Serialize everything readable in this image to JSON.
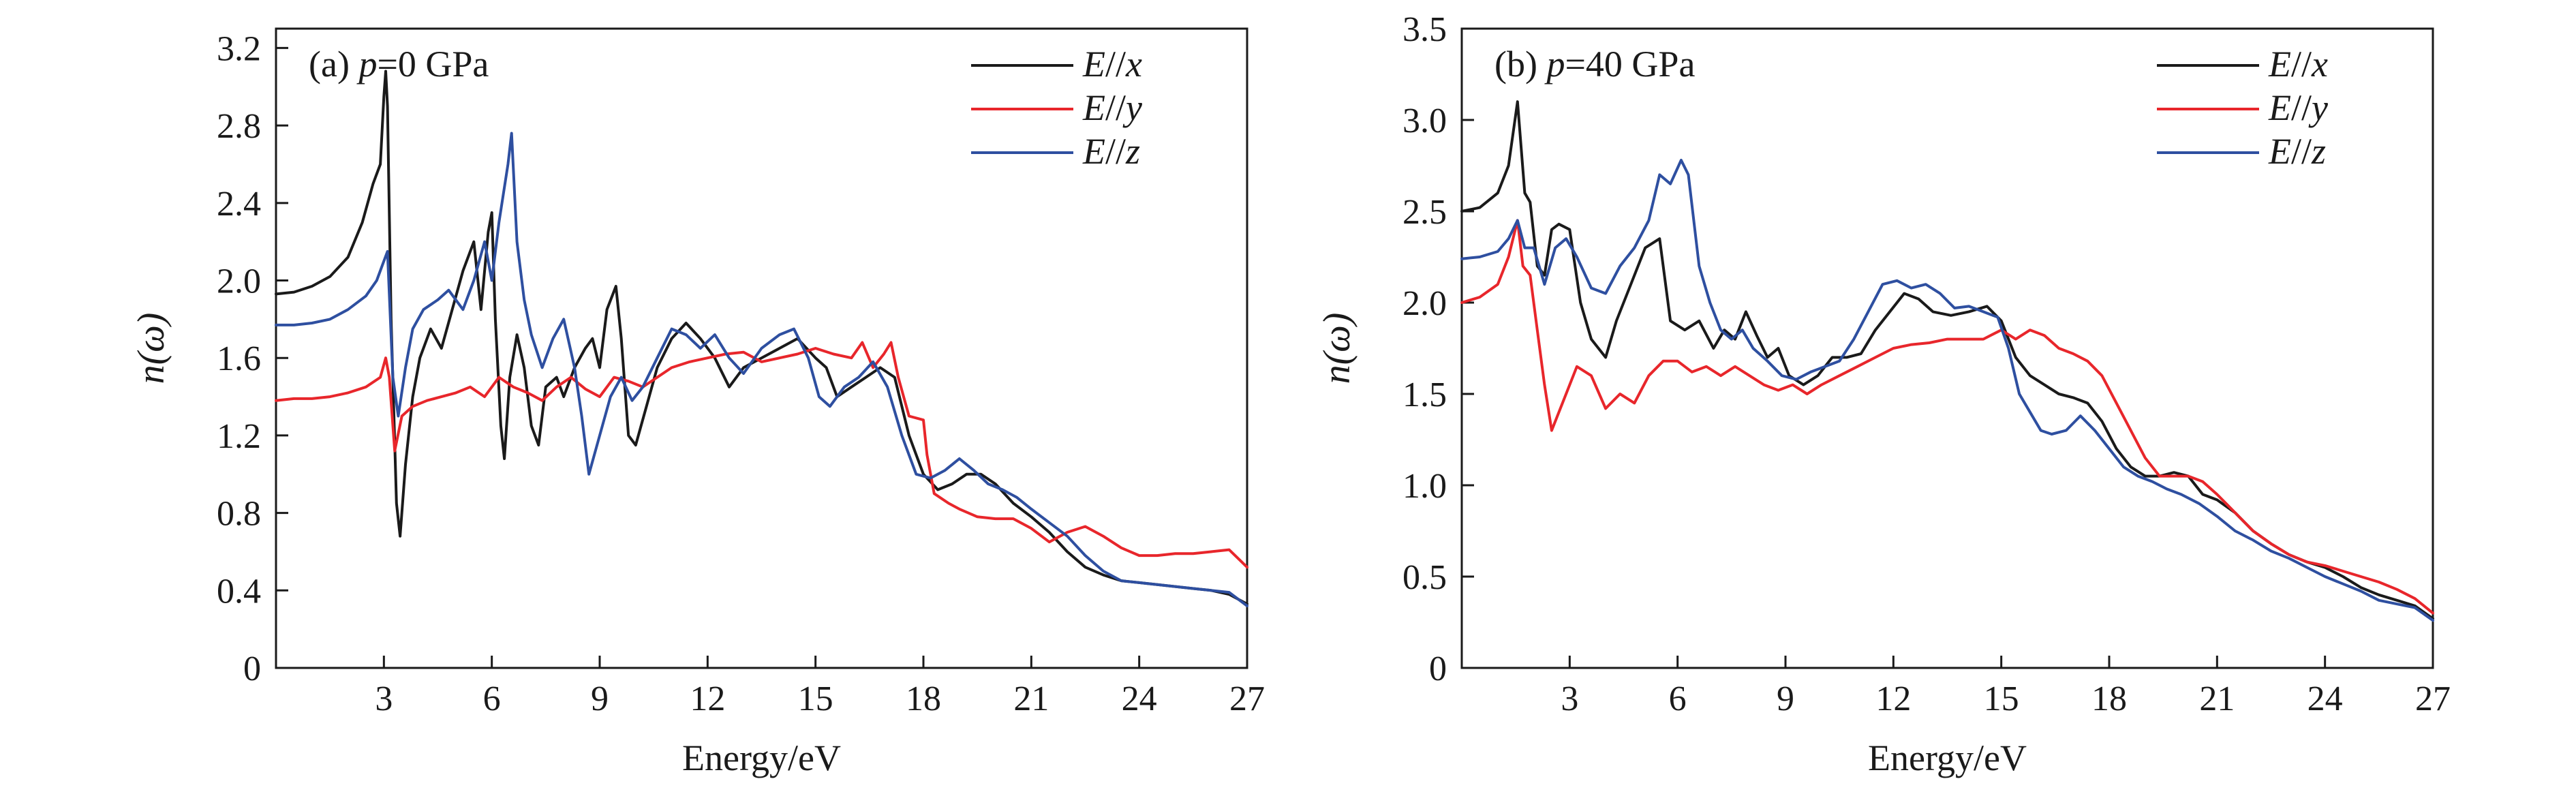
{
  "colors": {
    "x": "#1a1a1a",
    "y": "#e8262b",
    "z": "#2e4fa0",
    "axis": "#1a1a1a"
  },
  "chart_data": [
    {
      "type": "line",
      "panel_label": "(a) ",
      "panel_var": "p",
      "panel_value": "=0 GPa",
      "xlabel": "Energy/eV",
      "ylabel": "n(ω)",
      "xlim": [
        0,
        27
      ],
      "ylim": [
        0,
        3.3
      ],
      "xticks": [
        3,
        6,
        9,
        12,
        15,
        18,
        21,
        24,
        27
      ],
      "yticks": [
        0,
        0.4,
        0.8,
        1.2,
        1.6,
        2.0,
        2.4,
        2.8,
        3.2
      ],
      "ytick_labels": [
        "0",
        "0.4",
        "0.8",
        "1.2",
        "1.6",
        "2.0",
        "2.4",
        "2.8",
        "3.2"
      ],
      "legend": "top-right",
      "series": [
        {
          "name": "E//x",
          "name_prefix": "E",
          "name_sep": "//",
          "name_var": "x",
          "color": "#1a1a1a",
          "x": [
            0,
            0.5,
            1.0,
            1.5,
            2.0,
            2.4,
            2.7,
            2.9,
            3.0,
            3.05,
            3.1,
            3.2,
            3.35,
            3.45,
            3.6,
            3.8,
            4.0,
            4.3,
            4.6,
            4.9,
            5.2,
            5.5,
            5.7,
            5.9,
            6.0,
            6.1,
            6.25,
            6.35,
            6.5,
            6.7,
            6.9,
            7.1,
            7.3,
            7.5,
            7.8,
            8.0,
            8.3,
            8.6,
            8.8,
            9.0,
            9.2,
            9.45,
            9.6,
            9.8,
            10.0,
            10.3,
            10.6,
            11.0,
            11.4,
            11.8,
            12.2,
            12.6,
            13.0,
            13.5,
            14.0,
            14.5,
            15.0,
            15.3,
            15.6,
            16.0,
            16.4,
            16.8,
            17.2,
            17.6,
            18.0,
            18.4,
            18.8,
            19.2,
            19.6,
            20.0,
            20.5,
            21.0,
            21.5,
            22.0,
            22.5,
            23.0,
            23.5,
            24.0,
            24.5,
            25.0,
            25.5,
            26.0,
            26.5,
            27.0
          ],
          "y": [
            1.93,
            1.94,
            1.97,
            2.02,
            2.12,
            2.3,
            2.5,
            2.6,
            2.95,
            3.08,
            2.9,
            1.8,
            0.85,
            0.68,
            1.05,
            1.4,
            1.6,
            1.75,
            1.65,
            1.85,
            2.05,
            2.2,
            1.85,
            2.25,
            2.35,
            1.8,
            1.25,
            1.08,
            1.5,
            1.72,
            1.55,
            1.25,
            1.15,
            1.45,
            1.5,
            1.4,
            1.55,
            1.65,
            1.7,
            1.55,
            1.85,
            1.97,
            1.7,
            1.2,
            1.15,
            1.35,
            1.55,
            1.7,
            1.78,
            1.7,
            1.6,
            1.45,
            1.55,
            1.6,
            1.65,
            1.7,
            1.6,
            1.55,
            1.4,
            1.45,
            1.5,
            1.55,
            1.5,
            1.2,
            1.0,
            0.92,
            0.95,
            1.0,
            1.0,
            0.95,
            0.85,
            0.78,
            0.7,
            0.6,
            0.52,
            0.48,
            0.45,
            0.44,
            0.43,
            0.42,
            0.41,
            0.4,
            0.38,
            0.33
          ]
        },
        {
          "name": "E//y",
          "name_prefix": "E",
          "name_sep": "//",
          "name_var": "y",
          "color": "#e8262b",
          "x": [
            0,
            0.5,
            1.0,
            1.5,
            2.0,
            2.5,
            2.9,
            3.05,
            3.15,
            3.3,
            3.5,
            3.8,
            4.2,
            4.6,
            5.0,
            5.4,
            5.8,
            6.2,
            6.6,
            7.0,
            7.4,
            7.8,
            8.2,
            8.6,
            9.0,
            9.4,
            9.8,
            10.2,
            10.6,
            11.0,
            11.5,
            12.0,
            12.5,
            13.0,
            13.5,
            14.0,
            14.5,
            15.0,
            15.5,
            16.0,
            16.3,
            16.6,
            16.9,
            17.1,
            17.3,
            17.6,
            18.0,
            18.1,
            18.3,
            18.7,
            19.0,
            19.5,
            20.0,
            20.5,
            21.0,
            21.5,
            22.0,
            22.5,
            23.0,
            23.5,
            24.0,
            24.5,
            25.0,
            25.5,
            26.0,
            26.5,
            27.0
          ],
          "y": [
            1.38,
            1.39,
            1.39,
            1.4,
            1.42,
            1.45,
            1.5,
            1.6,
            1.5,
            1.12,
            1.3,
            1.35,
            1.38,
            1.4,
            1.42,
            1.45,
            1.4,
            1.5,
            1.45,
            1.42,
            1.38,
            1.45,
            1.5,
            1.44,
            1.4,
            1.5,
            1.48,
            1.45,
            1.5,
            1.55,
            1.58,
            1.6,
            1.62,
            1.63,
            1.58,
            1.6,
            1.62,
            1.65,
            1.62,
            1.6,
            1.68,
            1.55,
            1.62,
            1.68,
            1.5,
            1.3,
            1.28,
            1.1,
            0.9,
            0.85,
            0.82,
            0.78,
            0.77,
            0.77,
            0.72,
            0.65,
            0.7,
            0.73,
            0.68,
            0.62,
            0.58,
            0.58,
            0.59,
            0.59,
            0.6,
            0.61,
            0.52
          ]
        },
        {
          "name": "E//z",
          "name_prefix": "E",
          "name_sep": "//",
          "name_var": "z",
          "color": "#2e4fa0",
          "x": [
            0,
            0.5,
            1.0,
            1.5,
            2.0,
            2.5,
            2.8,
            3.0,
            3.1,
            3.25,
            3.4,
            3.6,
            3.8,
            4.1,
            4.5,
            4.8,
            5.2,
            5.5,
            5.8,
            6.0,
            6.2,
            6.45,
            6.55,
            6.7,
            6.9,
            7.1,
            7.4,
            7.7,
            8.0,
            8.3,
            8.5,
            8.7,
            9.0,
            9.3,
            9.6,
            9.9,
            10.2,
            10.6,
            11.0,
            11.4,
            11.8,
            12.2,
            12.6,
            13.0,
            13.5,
            14.0,
            14.4,
            14.8,
            15.1,
            15.4,
            15.8,
            16.2,
            16.6,
            17.0,
            17.4,
            17.8,
            18.2,
            18.6,
            19.0,
            19.4,
            19.8,
            20.2,
            20.6,
            21.0,
            21.5,
            22.0,
            22.5,
            23.0,
            23.5,
            24.0,
            24.5,
            25.0,
            25.5,
            26.0,
            26.5,
            27.0
          ],
          "y": [
            1.77,
            1.77,
            1.78,
            1.8,
            1.85,
            1.92,
            2.0,
            2.1,
            2.15,
            1.5,
            1.3,
            1.55,
            1.75,
            1.85,
            1.9,
            1.95,
            1.85,
            2.0,
            2.2,
            2.0,
            2.3,
            2.6,
            2.76,
            2.2,
            1.9,
            1.72,
            1.55,
            1.7,
            1.8,
            1.55,
            1.3,
            1.0,
            1.2,
            1.4,
            1.5,
            1.38,
            1.45,
            1.6,
            1.75,
            1.72,
            1.65,
            1.72,
            1.6,
            1.52,
            1.65,
            1.72,
            1.75,
            1.6,
            1.4,
            1.35,
            1.45,
            1.5,
            1.58,
            1.45,
            1.2,
            1.0,
            0.98,
            1.02,
            1.08,
            1.02,
            0.95,
            0.92,
            0.88,
            0.82,
            0.75,
            0.68,
            0.58,
            0.5,
            0.45,
            0.44,
            0.43,
            0.42,
            0.41,
            0.4,
            0.39,
            0.32
          ]
        }
      ]
    },
    {
      "type": "line",
      "panel_label": "(b) ",
      "panel_var": "p",
      "panel_value": "=40 GPa",
      "xlabel": "Energy/eV",
      "ylabel": "n(ω)",
      "xlim": [
        0,
        27
      ],
      "ylim": [
        0,
        3.5
      ],
      "xticks": [
        3,
        6,
        9,
        12,
        15,
        18,
        21,
        24,
        27
      ],
      "yticks": [
        0,
        0.5,
        1.0,
        1.5,
        2.0,
        2.5,
        3.0,
        3.5
      ],
      "ytick_labels": [
        "0",
        "0.5",
        "1.0",
        "1.5",
        "2.0",
        "2.5",
        "3.0",
        "3.5"
      ],
      "legend": "top-right",
      "series": [
        {
          "name": "E//x",
          "name_prefix": "E",
          "name_sep": "//",
          "name_var": "x",
          "color": "#1a1a1a",
          "x": [
            0,
            0.5,
            1.0,
            1.3,
            1.55,
            1.75,
            1.9,
            2.1,
            2.3,
            2.5,
            2.7,
            3.0,
            3.3,
            3.6,
            4.0,
            4.3,
            4.7,
            5.1,
            5.5,
            5.8,
            6.2,
            6.6,
            7.0,
            7.3,
            7.6,
            7.9,
            8.2,
            8.5,
            8.8,
            9.1,
            9.5,
            9.9,
            10.3,
            10.7,
            11.1,
            11.5,
            11.9,
            12.3,
            12.7,
            13.1,
            13.6,
            14.1,
            14.6,
            15.0,
            15.4,
            15.8,
            16.2,
            16.6,
            17.0,
            17.4,
            17.8,
            18.2,
            18.6,
            19.0,
            19.4,
            19.8,
            20.2,
            20.6,
            21.0,
            21.5,
            22.0,
            22.5,
            23.0,
            23.5,
            24.0,
            24.5,
            25.0,
            25.5,
            26.0,
            26.5,
            27.0
          ],
          "y": [
            2.5,
            2.52,
            2.6,
            2.75,
            3.1,
            2.6,
            2.55,
            2.2,
            2.15,
            2.4,
            2.43,
            2.4,
            2.0,
            1.8,
            1.7,
            1.9,
            2.1,
            2.3,
            2.35,
            1.9,
            1.85,
            1.9,
            1.75,
            1.85,
            1.8,
            1.95,
            1.82,
            1.7,
            1.75,
            1.6,
            1.55,
            1.6,
            1.7,
            1.7,
            1.72,
            1.85,
            1.95,
            2.05,
            2.02,
            1.95,
            1.93,
            1.95,
            1.98,
            1.9,
            1.7,
            1.6,
            1.55,
            1.5,
            1.48,
            1.45,
            1.35,
            1.2,
            1.1,
            1.05,
            1.05,
            1.07,
            1.05,
            0.95,
            0.92,
            0.85,
            0.75,
            0.68,
            0.62,
            0.58,
            0.55,
            0.5,
            0.44,
            0.4,
            0.37,
            0.34,
            0.27
          ]
        },
        {
          "name": "E//y",
          "name_prefix": "E",
          "name_sep": "//",
          "name_var": "y",
          "color": "#e8262b",
          "x": [
            0,
            0.5,
            1.0,
            1.3,
            1.55,
            1.7,
            1.9,
            2.1,
            2.3,
            2.5,
            2.8,
            3.2,
            3.6,
            4.0,
            4.4,
            4.8,
            5.2,
            5.6,
            6.0,
            6.4,
            6.8,
            7.2,
            7.6,
            8.0,
            8.4,
            8.8,
            9.2,
            9.6,
            10.0,
            10.5,
            11.0,
            11.5,
            12.0,
            12.5,
            13.0,
            13.5,
            14.0,
            14.5,
            15.0,
            15.4,
            15.8,
            16.2,
            16.6,
            17.0,
            17.4,
            17.8,
            18.2,
            18.6,
            19.0,
            19.4,
            19.8,
            20.2,
            20.6,
            21.0,
            21.5,
            22.0,
            22.5,
            23.0,
            23.5,
            24.0,
            24.5,
            25.0,
            25.5,
            26.0,
            26.5,
            27.0
          ],
          "y": [
            2.0,
            2.03,
            2.1,
            2.25,
            2.45,
            2.2,
            2.15,
            1.85,
            1.55,
            1.3,
            1.45,
            1.65,
            1.6,
            1.42,
            1.5,
            1.45,
            1.6,
            1.68,
            1.68,
            1.62,
            1.65,
            1.6,
            1.65,
            1.6,
            1.55,
            1.52,
            1.55,
            1.5,
            1.55,
            1.6,
            1.65,
            1.7,
            1.75,
            1.77,
            1.78,
            1.8,
            1.8,
            1.8,
            1.85,
            1.8,
            1.85,
            1.82,
            1.75,
            1.72,
            1.68,
            1.6,
            1.45,
            1.3,
            1.15,
            1.05,
            1.05,
            1.05,
            1.02,
            0.95,
            0.85,
            0.75,
            0.68,
            0.62,
            0.58,
            0.56,
            0.53,
            0.5,
            0.47,
            0.43,
            0.38,
            0.3
          ]
        },
        {
          "name": "E//z",
          "name_prefix": "E",
          "name_sep": "//",
          "name_var": "z",
          "color": "#2e4fa0",
          "x": [
            0,
            0.5,
            1.0,
            1.3,
            1.55,
            1.75,
            2.0,
            2.3,
            2.6,
            2.9,
            3.2,
            3.6,
            4.0,
            4.4,
            4.8,
            5.2,
            5.5,
            5.8,
            6.1,
            6.3,
            6.6,
            6.9,
            7.2,
            7.5,
            7.8,
            8.1,
            8.5,
            8.9,
            9.3,
            9.7,
            10.1,
            10.5,
            10.9,
            11.3,
            11.7,
            12.1,
            12.5,
            12.9,
            13.3,
            13.7,
            14.1,
            14.5,
            14.9,
            15.2,
            15.5,
            15.8,
            16.1,
            16.4,
            16.8,
            17.2,
            17.6,
            18.0,
            18.4,
            18.8,
            19.2,
            19.6,
            20.0,
            20.5,
            21.0,
            21.5,
            22.0,
            22.5,
            23.0,
            23.5,
            24.0,
            24.5,
            25.0,
            25.5,
            26.0,
            26.5,
            27.0
          ],
          "y": [
            2.24,
            2.25,
            2.28,
            2.35,
            2.45,
            2.3,
            2.3,
            2.1,
            2.3,
            2.35,
            2.25,
            2.08,
            2.05,
            2.2,
            2.3,
            2.45,
            2.7,
            2.65,
            2.78,
            2.7,
            2.2,
            2.0,
            1.85,
            1.8,
            1.85,
            1.75,
            1.68,
            1.6,
            1.58,
            1.62,
            1.65,
            1.68,
            1.8,
            1.95,
            2.1,
            2.12,
            2.08,
            2.1,
            2.05,
            1.97,
            1.98,
            1.95,
            1.92,
            1.75,
            1.5,
            1.4,
            1.3,
            1.28,
            1.3,
            1.38,
            1.3,
            1.2,
            1.1,
            1.05,
            1.02,
            0.98,
            0.95,
            0.9,
            0.83,
            0.75,
            0.7,
            0.64,
            0.6,
            0.55,
            0.5,
            0.46,
            0.42,
            0.37,
            0.35,
            0.33,
            0.26
          ]
        }
      ]
    }
  ]
}
